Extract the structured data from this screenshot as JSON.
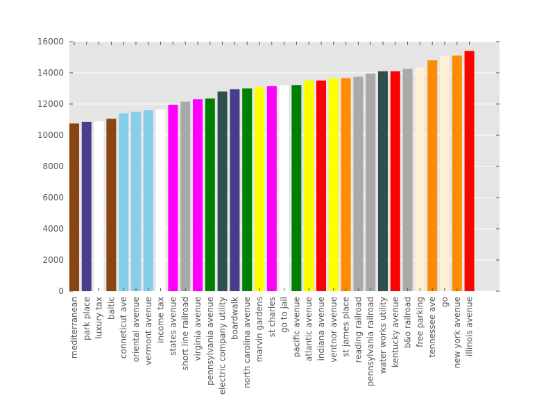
{
  "chart_data": {
    "type": "bar",
    "title": "",
    "xlabel": "",
    "ylabel": "",
    "ylim": [
      0,
      16000
    ],
    "yticks": [
      0,
      2000,
      4000,
      6000,
      8000,
      10000,
      12000,
      14000,
      16000
    ],
    "grid": true,
    "background": "#e5e5e5",
    "categories": [
      "mediterranean",
      "park place",
      "luxury tax",
      "baltic",
      "conneticut ave",
      "oriental avenue",
      "vermont avenue",
      "income tax",
      "states avenue",
      "short line railroad",
      "virginia avenue",
      "pennsylvania avenue",
      "electric company utility",
      "boardwalk",
      "north carolina avenue",
      "marvin gardens",
      "st charles",
      "go to jail",
      "pacific avenue",
      "atlantic avenue",
      "indiana avenue",
      "ventnor avenue",
      "st james place",
      "reading railroad",
      "pennsylvania railroad",
      "water works utility",
      "kentucky avenue",
      "b&o railroad",
      "free parking",
      "tennessee ave",
      "go",
      "new york avenue",
      "illinois avenue"
    ],
    "values": [
      10750,
      10850,
      10900,
      11050,
      11400,
      11500,
      11600,
      11650,
      11950,
      12150,
      12300,
      12350,
      12800,
      12950,
      13000,
      13100,
      13150,
      13200,
      13200,
      13500,
      13500,
      13650,
      13650,
      13750,
      13950,
      14100,
      14100,
      14250,
      14350,
      14800,
      15100,
      15100,
      15400
    ],
    "colors": [
      "#8b4513",
      "#483d8b",
      "#ffffff",
      "#8b4513",
      "#87ceeb",
      "#87ceeb",
      "#87ceeb",
      "#ffffff",
      "#ff00ff",
      "#a9a9a9",
      "#ff00ff",
      "#008000",
      "#2f4f4f",
      "#483d8b",
      "#008000",
      "#ffff00",
      "#ff00ff",
      "#ffffff",
      "#008000",
      "#ffff00",
      "#ff0000",
      "#ffff00",
      "#ff8c00",
      "#a9a9a9",
      "#a9a9a9",
      "#2f4f4f",
      "#ff0000",
      "#a9a9a9",
      "#ffefd5",
      "#ff8c00",
      "#ffefd5",
      "#ff8c00",
      "#ff0000"
    ]
  }
}
